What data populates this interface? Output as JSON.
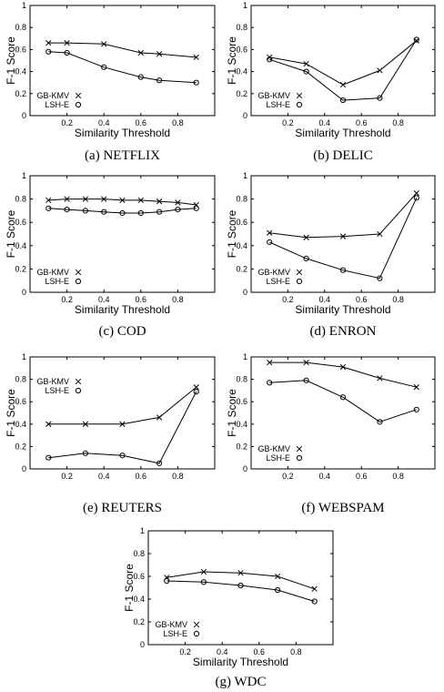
{
  "chart_data": [
    {
      "type": "line",
      "caption": "(a)  NETFLIX",
      "xlabel": "Similarity Threshold",
      "ylabel": "F-1 Score",
      "xlim": [
        0,
        1
      ],
      "ylim": [
        0,
        1
      ],
      "xticks": [
        "0.2",
        "0.4",
        "0.6",
        "0.8"
      ],
      "yticks": [
        "0",
        "0.2",
        "0.4",
        "0.6",
        "0.8",
        "1"
      ],
      "legend": "bottom-left",
      "series": [
        {
          "name": "GB-KMV",
          "marker": "x",
          "x": [
            0.1,
            0.2,
            0.4,
            0.6,
            0.7,
            0.9
          ],
          "y": [
            0.66,
            0.66,
            0.65,
            0.57,
            0.56,
            0.53
          ]
        },
        {
          "name": "LSH-E",
          "marker": "o",
          "x": [
            0.1,
            0.2,
            0.4,
            0.6,
            0.7,
            0.9
          ],
          "y": [
            0.58,
            0.57,
            0.44,
            0.35,
            0.32,
            0.3
          ]
        }
      ]
    },
    {
      "type": "line",
      "caption": "(b)  DELIC",
      "xlabel": "Similarity Threshold",
      "ylabel": "F-1 Score",
      "xlim": [
        0,
        1
      ],
      "ylim": [
        0,
        1
      ],
      "xticks": [
        "0.2",
        "0.4",
        "0.6",
        "0.8"
      ],
      "yticks": [
        "0",
        "0.2",
        "0.4",
        "0.6",
        "0.8",
        "1"
      ],
      "legend": "bottom-left",
      "series": [
        {
          "name": "GB-KMV",
          "marker": "x",
          "x": [
            0.1,
            0.3,
            0.5,
            0.7,
            0.9
          ],
          "y": [
            0.53,
            0.47,
            0.28,
            0.41,
            0.68
          ]
        },
        {
          "name": "LSH-E",
          "marker": "o",
          "x": [
            0.1,
            0.3,
            0.5,
            0.7,
            0.9
          ],
          "y": [
            0.51,
            0.4,
            0.14,
            0.16,
            0.69
          ]
        }
      ]
    },
    {
      "type": "line",
      "caption": "(c)  COD",
      "xlabel": "Similarity Threshold",
      "ylabel": "F-1 Score",
      "xlim": [
        0,
        1
      ],
      "ylim": [
        0,
        1
      ],
      "xticks": [
        "0.2",
        "0.4",
        "0.6",
        "0.8"
      ],
      "yticks": [
        "0",
        "0.2",
        "0.4",
        "0.6",
        "0.8",
        "1"
      ],
      "legend": "bottom-left",
      "series": [
        {
          "name": "GB-KMV",
          "marker": "x",
          "x": [
            0.1,
            0.2,
            0.3,
            0.4,
            0.5,
            0.6,
            0.7,
            0.8,
            0.9
          ],
          "y": [
            0.79,
            0.8,
            0.8,
            0.8,
            0.79,
            0.79,
            0.78,
            0.77,
            0.75
          ]
        },
        {
          "name": "LSH-E",
          "marker": "o",
          "x": [
            0.1,
            0.2,
            0.3,
            0.4,
            0.5,
            0.6,
            0.7,
            0.8,
            0.9
          ],
          "y": [
            0.72,
            0.71,
            0.7,
            0.69,
            0.68,
            0.68,
            0.69,
            0.71,
            0.72
          ]
        }
      ]
    },
    {
      "type": "line",
      "caption": "(d)  ENRON",
      "xlabel": "Similarity Threshold",
      "ylabel": "F-1 Score",
      "xlim": [
        0,
        1
      ],
      "ylim": [
        0,
        1
      ],
      "xticks": [
        "0.2",
        "0.4",
        "0.6",
        "0.8"
      ],
      "yticks": [
        "0",
        "0.2",
        "0.4",
        "0.6",
        "0.8",
        "1"
      ],
      "legend": "bottom-left",
      "series": [
        {
          "name": "GB-KMV",
          "marker": "x",
          "x": [
            0.1,
            0.3,
            0.5,
            0.7,
            0.9
          ],
          "y": [
            0.51,
            0.47,
            0.48,
            0.5,
            0.85
          ]
        },
        {
          "name": "LSH-E",
          "marker": "o",
          "x": [
            0.1,
            0.3,
            0.5,
            0.7,
            0.9
          ],
          "y": [
            0.43,
            0.29,
            0.19,
            0.12,
            0.81
          ]
        }
      ]
    },
    {
      "type": "line",
      "caption": "(e)  REUTERS",
      "xlabel": "",
      "ylabel": "F-1 Score",
      "xlim": [
        0,
        1
      ],
      "ylim": [
        0,
        1
      ],
      "xticks": [
        "0.2",
        "0.4",
        "0.6",
        "0.8"
      ],
      "yticks": [
        "0",
        "0.2",
        "0.4",
        "0.6",
        "0.8",
        "1"
      ],
      "legend": "top-left",
      "series": [
        {
          "name": "GB-KMV",
          "marker": "x",
          "x": [
            0.1,
            0.3,
            0.5,
            0.7,
            0.9
          ],
          "y": [
            0.4,
            0.4,
            0.4,
            0.46,
            0.73
          ]
        },
        {
          "name": "LSH-E",
          "marker": "o",
          "x": [
            0.1,
            0.3,
            0.5,
            0.7,
            0.9
          ],
          "y": [
            0.1,
            0.14,
            0.12,
            0.05,
            0.69
          ]
        }
      ]
    },
    {
      "type": "line",
      "caption": "(f)  WEBSPAM",
      "xlabel": "",
      "ylabel": "F-1 Score",
      "xlim": [
        0,
        1
      ],
      "ylim": [
        0,
        1
      ],
      "xticks": [
        "0.2",
        "0.4",
        "0.6",
        "0.8"
      ],
      "yticks": [
        "0",
        "0.2",
        "0.4",
        "0.6",
        "0.8",
        "1"
      ],
      "legend": "bottom-left",
      "series": [
        {
          "name": "GB-KMV",
          "marker": "x",
          "x": [
            0.1,
            0.3,
            0.5,
            0.7,
            0.9
          ],
          "y": [
            0.95,
            0.95,
            0.91,
            0.81,
            0.73
          ]
        },
        {
          "name": "LSH-E",
          "marker": "o",
          "x": [
            0.1,
            0.3,
            0.5,
            0.7,
            0.9
          ],
          "y": [
            0.77,
            0.79,
            0.64,
            0.42,
            0.53
          ]
        }
      ]
    },
    {
      "type": "line",
      "caption": "(g)  WDC",
      "xlabel": "Similarity Threshold",
      "ylabel": "F-1 Score",
      "xlim": [
        0,
        1
      ],
      "ylim": [
        0,
        1
      ],
      "xticks": [
        "0.2",
        "0.4",
        "0.6",
        "0.8"
      ],
      "yticks": [
        "0",
        "0.2",
        "0.4",
        "0.6",
        "0.8",
        "1"
      ],
      "legend": "bottom-left",
      "series": [
        {
          "name": "GB-KMV",
          "marker": "x",
          "x": [
            0.1,
            0.3,
            0.5,
            0.7,
            0.9
          ],
          "y": [
            0.59,
            0.64,
            0.63,
            0.6,
            0.49
          ]
        },
        {
          "name": "LSH-E",
          "marker": "o",
          "x": [
            0.1,
            0.3,
            0.5,
            0.7,
            0.9
          ],
          "y": [
            0.56,
            0.55,
            0.52,
            0.48,
            0.38
          ]
        }
      ]
    }
  ]
}
